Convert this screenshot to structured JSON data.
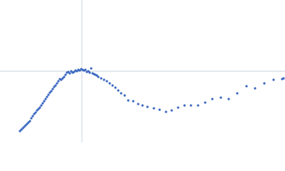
{
  "chart_data": {
    "type": "scatter",
    "color": "#3a67c0",
    "reference_color": "#c9d3df",
    "xlim": [
      0,
      400
    ],
    "ylim": [
      0,
      200
    ],
    "reference_x": 115,
    "reference_y": 100,
    "x": [
      28,
      30,
      32,
      34,
      36,
      38,
      40,
      42,
      44,
      46,
      48,
      50,
      52,
      54,
      56,
      58,
      60,
      62,
      64,
      66,
      68,
      70,
      72,
      74,
      76,
      78,
      80,
      82,
      84,
      86,
      88,
      90,
      92,
      94,
      96,
      98,
      100,
      102,
      104,
      106,
      108,
      110,
      112,
      114,
      116,
      118,
      120,
      122,
      124,
      126,
      128,
      130,
      132,
      134,
      136,
      138,
      142,
      146,
      150,
      154,
      158,
      162,
      166,
      170,
      175,
      180,
      187,
      194,
      200,
      207,
      216,
      224,
      233,
      241,
      250,
      259,
      268,
      278,
      288,
      298,
      310,
      321,
      333,
      346,
      358,
      371,
      384,
      396,
      398
    ],
    "values": [
      16,
      18,
      20,
      22,
      24,
      26,
      28,
      30,
      34,
      37,
      40,
      42,
      45,
      47,
      49,
      52,
      55,
      58,
      61,
      64,
      67,
      70,
      72,
      75,
      78,
      80,
      83,
      86,
      89,
      88,
      90,
      92,
      95,
      98,
      99,
      97,
      100,
      98,
      99,
      101,
      100,
      102,
      101,
      103,
      102,
      101,
      102,
      99,
      100,
      98,
      104,
      97,
      96,
      95,
      94,
      92,
      90,
      88,
      86,
      83,
      80,
      77,
      73,
      69,
      66,
      59,
      58,
      54,
      52,
      50,
      48,
      46,
      43,
      45,
      49,
      52,
      52,
      52,
      56,
      61,
      63,
      61,
      69,
      79,
      76,
      83,
      88,
      89,
      90
    ]
  }
}
